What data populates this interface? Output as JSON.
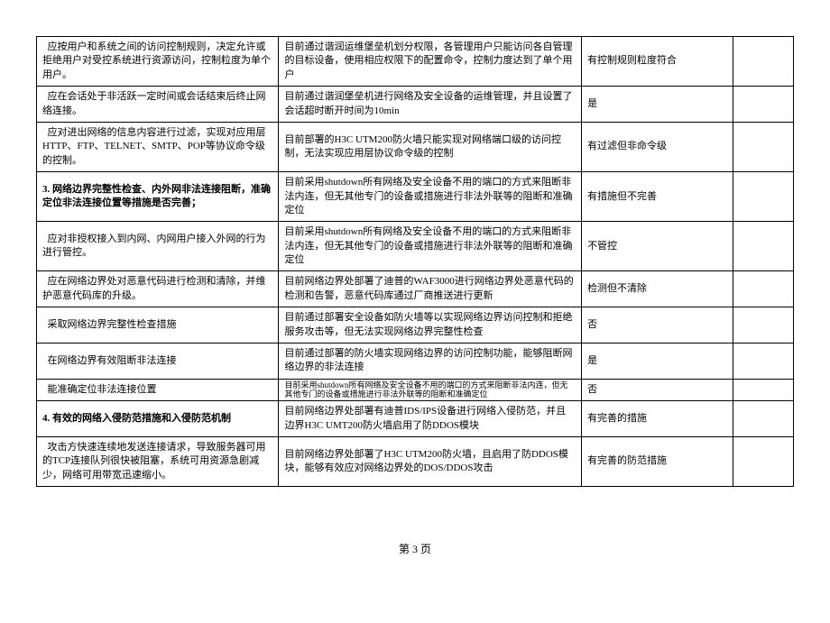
{
  "rows": [
    {
      "c1": "  应按用户和系统之间的访问控制规则，决定允许或拒绝用户对受控系统进行资源访问，控制粒度为单个用户。",
      "c2": "目前通过谐润运维堡垒机划分权限，各管理用户只能访问各自管理的目标设备，使用相应权限下的配置命令，控制力度达到了单个用户",
      "c3": "有控制规则粒度符合",
      "c4": ""
    },
    {
      "c1": "  应在会话处于非活跃一定时间或会话结束后终止网络连接。",
      "c2": "目前通过谐润堡垒机进行网络及安全设备的运维管理，并且设置了会话超时断开时间为10min",
      "c3": "是",
      "c4": ""
    },
    {
      "c1": "  应对进出网络的信息内容进行过滤，实现对应用层HTTP、FTP、TELNET、SMTP、POP等协议命令级的控制。",
      "c2": "目前部署的H3C UTM200防火墙只能实现对网络端口级的访问控制，无法实现应用层协议命令级的控制",
      "c3": "有过滤但非命令级",
      "c4": ""
    },
    {
      "c1": "3. 网络边界完整性检查、内外网非法连接阻断，准确定位非法连接位置等措施是否完善；",
      "c1_bold": true,
      "c2": "目前采用shutdown所有网络及安全设备不用的端口的方式来阻断非法内连，但无其他专门的设备或措施进行非法外联等的阻断和准确定位",
      "c3": "有措施但不完善",
      "c4": ""
    },
    {
      "c1": "  应对非授权接入到内网、内网用户接入外网的行为进行管控。",
      "c2": "目前采用shutdown所有网络及安全设备不用的端口的方式来阻断非法内连，但无其他专门的设备或措施进行非法外联等的阻断和准确定位",
      "c3": "不管控",
      "c4": ""
    },
    {
      "c1": "  应在网络边界处对恶意代码进行检测和清除，并维护恶意代码库的升级。",
      "c2": "目前网络边界处部署了迪普的WAF3000进行网络边界处恶意代码的检测和告警，恶意代码库通过厂商推送进行更新",
      "c3": "检测但不清除",
      "c4": ""
    },
    {
      "c1": "  采取网络边界完整性检查措施",
      "c2": "目前通过部署安全设备如防火墙等以实现网络边界访问控制和拒绝服务攻击等，但无法实现网络边界完整性检查",
      "c3": "否",
      "c4": ""
    },
    {
      "c1": "  在网络边界有效阻断非法连接",
      "c2": "目前通过部署的防火墙实现网络边界的访问控制功能，能够阻断网络边界的非法连接",
      "c3": "是",
      "c4": ""
    },
    {
      "c1": "  能准确定位非法连接位置",
      "c2": "目前采用shutdown所有网络及安全设备不用的端口的方式来阻断非法内连，但无其他专门的设备或措施进行非法外联等的阻断和准确定位",
      "c3": "否",
      "c4": "",
      "clip": true
    },
    {
      "c1": "4. 有效的网络入侵防范措施和入侵防范机制",
      "c1_bold": true,
      "c2": "目前网络边界处部署有迪普IDS/IPS设备进行网络入侵防范，并且边界H3C UMT200防火墙启用了防DDOS模块",
      "c3": "有完善的措施",
      "c4": ""
    },
    {
      "c1": "  攻击方快速连续地发送连接请求，导致服务器可用的TCP连接队列很快被阻塞，系统可用资源急剧减少，网络可用带宽迅速缩小。",
      "c2": "目前网络边界处部署了H3C UTM200防火墙，且启用了防DDOS模块，能够有效应对网络边界处的DOS/DDOS攻击",
      "c3": "有完善的防范措施",
      "c4": ""
    }
  ],
  "page_number": "第 3 页"
}
